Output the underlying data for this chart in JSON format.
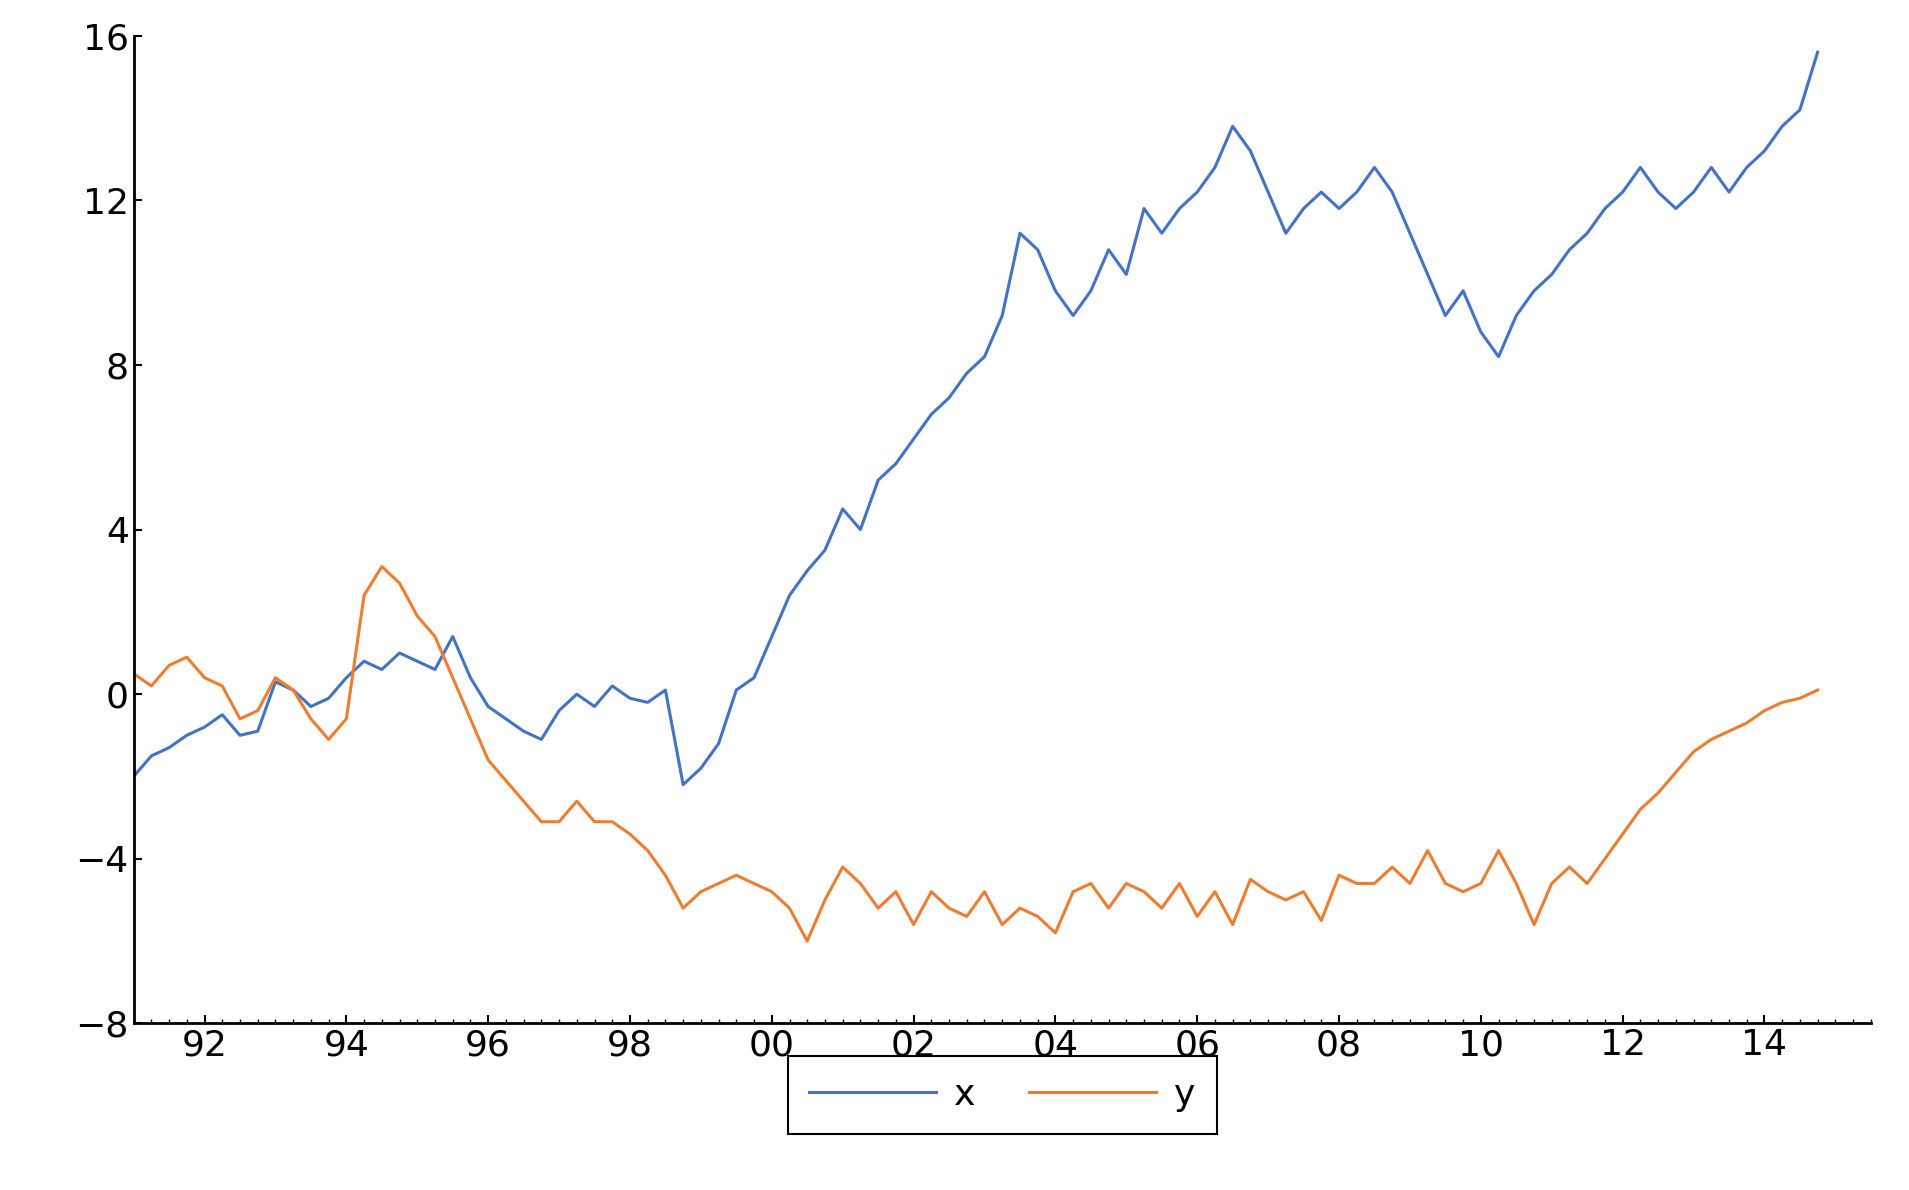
{
  "x_color": "#4472C4",
  "y_color": "#ED7D31",
  "line_width": 2.2,
  "bg_color": "#FFFFFF",
  "ylim": [
    -8,
    16
  ],
  "yticks": [
    -8,
    -4,
    0,
    4,
    8,
    12,
    16
  ],
  "xtick_labels": [
    "92",
    "94",
    "96",
    "98",
    "00",
    "02",
    "04",
    "06",
    "08",
    "10",
    "12",
    "14"
  ],
  "legend_labels": [
    "x",
    "y"
  ],
  "start_year": 1991.0,
  "x_values": [
    -2.0,
    -1.5,
    -1.3,
    -1.0,
    -0.8,
    -0.5,
    -1.0,
    -0.9,
    0.3,
    0.1,
    -0.3,
    -0.1,
    0.4,
    0.8,
    0.6,
    1.0,
    0.8,
    0.6,
    1.4,
    0.4,
    -0.3,
    -0.6,
    -0.9,
    -1.1,
    -0.4,
    0.0,
    -0.3,
    0.2,
    -0.1,
    -0.2,
    0.1,
    -2.2,
    -1.8,
    -1.2,
    0.1,
    0.4,
    1.4,
    2.4,
    3.0,
    3.5,
    4.5,
    4.0,
    5.2,
    5.6,
    6.2,
    6.8,
    7.2,
    7.8,
    8.2,
    9.2,
    11.2,
    10.8,
    9.8,
    9.2,
    9.8,
    10.8,
    10.2,
    11.8,
    11.2,
    11.8,
    12.2,
    12.8,
    13.8,
    13.2,
    12.2,
    11.2,
    11.8,
    12.2,
    11.8,
    12.2,
    12.8,
    12.2,
    11.2,
    10.2,
    9.2,
    9.8,
    8.8,
    8.2,
    9.2,
    9.8,
    10.2,
    10.8,
    11.2,
    11.8,
    12.2,
    12.8,
    12.2,
    11.8,
    12.2,
    12.8,
    12.2,
    12.8,
    13.2,
    13.8,
    14.2,
    15.6
  ],
  "y_values": [
    0.5,
    0.2,
    0.7,
    0.9,
    0.4,
    0.2,
    -0.6,
    -0.4,
    0.4,
    0.1,
    -0.6,
    -1.1,
    -0.6,
    2.4,
    3.1,
    2.7,
    1.9,
    1.4,
    0.4,
    -0.6,
    -1.6,
    -2.1,
    -2.6,
    -3.1,
    -3.1,
    -2.6,
    -3.1,
    -3.1,
    -3.4,
    -3.8,
    -4.4,
    -5.2,
    -4.8,
    -4.6,
    -4.4,
    -4.6,
    -4.8,
    -5.2,
    -6.0,
    -5.0,
    -4.2,
    -4.6,
    -5.2,
    -4.8,
    -5.6,
    -4.8,
    -5.2,
    -5.4,
    -4.8,
    -5.6,
    -5.2,
    -5.4,
    -5.8,
    -4.8,
    -4.6,
    -5.2,
    -4.6,
    -4.8,
    -5.2,
    -4.6,
    -5.4,
    -4.8,
    -5.6,
    -4.5,
    -4.8,
    -5.0,
    -4.8,
    -5.5,
    -4.4,
    -4.6,
    -4.6,
    -4.2,
    -4.6,
    -3.8,
    -4.6,
    -4.8,
    -4.6,
    -3.8,
    -4.6,
    -5.6,
    -4.6,
    -4.2,
    -4.6,
    -4.0,
    -3.4,
    -2.8,
    -2.4,
    -1.9,
    -1.4,
    -1.1,
    -0.9,
    -0.7,
    -0.4,
    -0.2,
    -0.1,
    0.1
  ]
}
